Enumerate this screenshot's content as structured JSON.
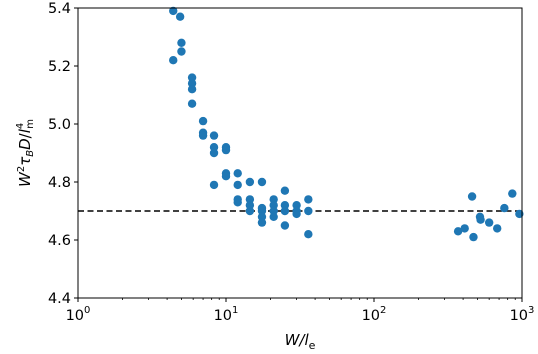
{
  "chart_data": {
    "type": "scatter",
    "xlabel": {
      "base": "W/",
      "italic": "l",
      "sub": "e"
    },
    "ylabel": {
      "text": "W²τ_B D / l_m⁴"
    },
    "x_scale": "log",
    "xlim": [
      1,
      1000
    ],
    "ylim": [
      4.4,
      5.4
    ],
    "x_ticks": [
      {
        "value": 1,
        "base": "10",
        "exp": "0"
      },
      {
        "value": 10,
        "base": "10",
        "exp": "1"
      },
      {
        "value": 100,
        "base": "10",
        "exp": "2"
      },
      {
        "value": 1000,
        "base": "10",
        "exp": "3"
      }
    ],
    "y_ticks": [
      {
        "value": 4.4,
        "label": "4.4"
      },
      {
        "value": 4.6,
        "label": "4.6"
      },
      {
        "value": 4.8,
        "label": "4.8"
      },
      {
        "value": 5.0,
        "label": "5.0"
      },
      {
        "value": 5.2,
        "label": "5.2"
      },
      {
        "value": 5.4,
        "label": "5.4"
      }
    ],
    "reference_line": {
      "y": 4.7,
      "style": "dashed",
      "color": "#000000"
    },
    "grid": false,
    "marker_color": "#1f77b4",
    "points": [
      {
        "x": 4.4,
        "y": 5.39
      },
      {
        "x": 4.9,
        "y": 5.37
      },
      {
        "x": 4.4,
        "y": 5.22
      },
      {
        "x": 5.0,
        "y": 5.28
      },
      {
        "x": 5.0,
        "y": 5.25
      },
      {
        "x": 5.9,
        "y": 5.16
      },
      {
        "x": 5.9,
        "y": 5.14
      },
      {
        "x": 5.9,
        "y": 5.12
      },
      {
        "x": 5.9,
        "y": 5.07
      },
      {
        "x": 7.0,
        "y": 5.01
      },
      {
        "x": 7.0,
        "y": 4.97
      },
      {
        "x": 7.0,
        "y": 4.96
      },
      {
        "x": 8.3,
        "y": 4.96
      },
      {
        "x": 8.3,
        "y": 4.92
      },
      {
        "x": 8.3,
        "y": 4.9
      },
      {
        "x": 8.3,
        "y": 4.79
      },
      {
        "x": 10.0,
        "y": 4.92
      },
      {
        "x": 10.0,
        "y": 4.91
      },
      {
        "x": 10.0,
        "y": 4.83
      },
      {
        "x": 10.0,
        "y": 4.82
      },
      {
        "x": 12.0,
        "y": 4.83
      },
      {
        "x": 12.0,
        "y": 4.79
      },
      {
        "x": 12.0,
        "y": 4.74
      },
      {
        "x": 12.0,
        "y": 4.73
      },
      {
        "x": 14.5,
        "y": 4.8
      },
      {
        "x": 14.5,
        "y": 4.74
      },
      {
        "x": 14.5,
        "y": 4.72
      },
      {
        "x": 14.5,
        "y": 4.7
      },
      {
        "x": 17.5,
        "y": 4.8
      },
      {
        "x": 17.5,
        "y": 4.71
      },
      {
        "x": 17.5,
        "y": 4.7
      },
      {
        "x": 17.5,
        "y": 4.68
      },
      {
        "x": 17.5,
        "y": 4.66
      },
      {
        "x": 21.0,
        "y": 4.74
      },
      {
        "x": 21.0,
        "y": 4.72
      },
      {
        "x": 21.0,
        "y": 4.7
      },
      {
        "x": 21.0,
        "y": 4.68
      },
      {
        "x": 25.0,
        "y": 4.77
      },
      {
        "x": 25.0,
        "y": 4.72
      },
      {
        "x": 25.0,
        "y": 4.7
      },
      {
        "x": 25.0,
        "y": 4.65
      },
      {
        "x": 30.0,
        "y": 4.72
      },
      {
        "x": 30.0,
        "y": 4.7
      },
      {
        "x": 30.0,
        "y": 4.69
      },
      {
        "x": 36.0,
        "y": 4.74
      },
      {
        "x": 36.0,
        "y": 4.7
      },
      {
        "x": 36.0,
        "y": 4.62
      },
      {
        "x": 370.0,
        "y": 4.63
      },
      {
        "x": 410.0,
        "y": 4.64
      },
      {
        "x": 460.0,
        "y": 4.75
      },
      {
        "x": 470.0,
        "y": 4.61
      },
      {
        "x": 520.0,
        "y": 4.68
      },
      {
        "x": 525.0,
        "y": 4.67
      },
      {
        "x": 600.0,
        "y": 4.66
      },
      {
        "x": 680.0,
        "y": 4.64
      },
      {
        "x": 760.0,
        "y": 4.71
      },
      {
        "x": 860.0,
        "y": 4.76
      },
      {
        "x": 960.0,
        "y": 4.69
      }
    ]
  }
}
